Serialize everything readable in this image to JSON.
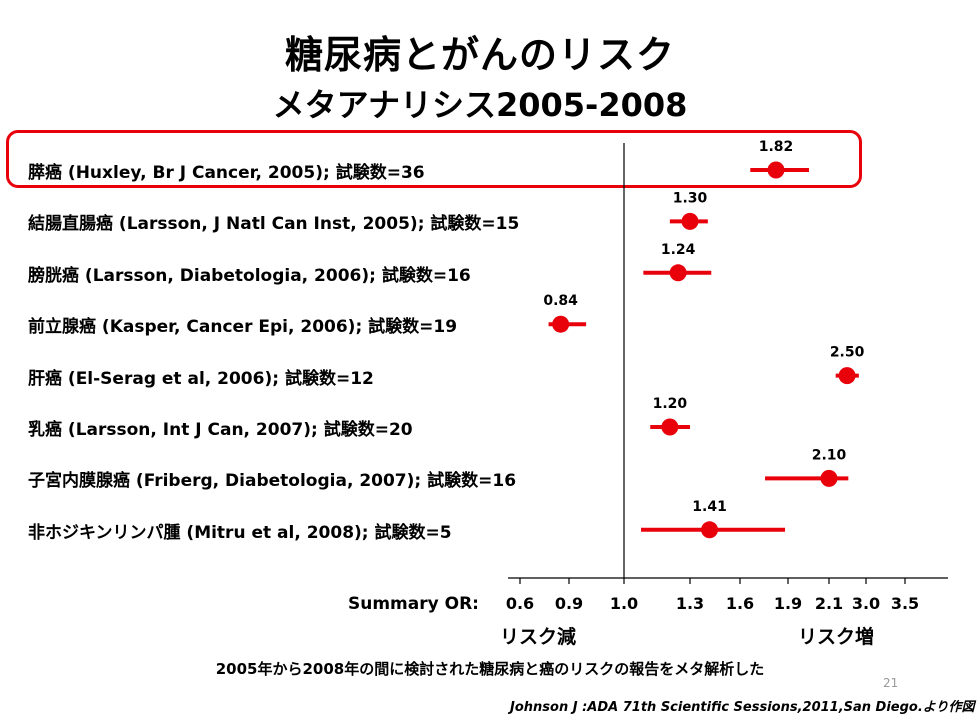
{
  "title_line1": "糖尿病とがんのリスク",
  "title_line2": "メタアナリシス2005-2008",
  "axis": {
    "prefix": "Summary OR:",
    "left_label": "リスク減",
    "right_label": "リスク増"
  },
  "caption": "2005年から2008年の間に検討された糖尿病と癌のリスクの報告をメタ解析した",
  "page_number": "21",
  "source": "Johnson J :ADA 71th Scientific Sessions,2011,San Diego.より作図",
  "colors": {
    "point": "#e8000b",
    "highlight": "#e8000b"
  },
  "rows": [
    {
      "name": "膵癌",
      "cite": "(Huxley, Br J Cancer, 2005); 試験数=36",
      "highlighted": true
    },
    {
      "name": "結腸直腸癌",
      "cite": "(Larsson, J Natl Can Inst, 2005); 試験数=15"
    },
    {
      "name": "膀胱癌",
      "cite": "(Larsson, Diabetologia, 2006); 試験数=16"
    },
    {
      "name": "前立腺癌",
      "cite": "(Kasper, Cancer Epi, 2006); 試験数=19"
    },
    {
      "name": "肝癌",
      "cite": "(El-Serag et al, 2006); 試験数=12"
    },
    {
      "name": "乳癌",
      "cite": "(Larsson, Int J Can, 2007); 試験数=20"
    },
    {
      "name": "子宮内膜腺癌",
      "cite": "(Friberg, Diabetologia, 2007); 試験数=16"
    },
    {
      "name": "非ホジキンリンパ腫",
      "cite": "(Mitru et al, 2008); 試験数=5"
    }
  ],
  "chart_data": {
    "type": "scatter",
    "subtype": "forest-plot",
    "x_scale": "log",
    "xlabel": "Summary OR:",
    "x_ticks": [
      0.6,
      0.9,
      1.0,
      1.3,
      1.6,
      1.9,
      2.1,
      3.0,
      3.5
    ],
    "x_tick_labels": [
      "0.6",
      "0.9",
      "1.0",
      "1.3",
      "1.6",
      "1.9",
      "2.1",
      "3.0",
      "3.5"
    ],
    "reference_line": 1.0,
    "points": [
      {
        "label": "膵癌",
        "or": 1.82,
        "or_text": "1.82",
        "ci": [
          1.66,
          2.0
        ]
      },
      {
        "label": "結腸直腸癌",
        "or": 1.3,
        "or_text": "1.30",
        "ci": [
          1.2,
          1.4
        ]
      },
      {
        "label": "膀胱癌",
        "or": 1.24,
        "or_text": "1.24",
        "ci": [
          1.08,
          1.42
        ]
      },
      {
        "label": "前立腺癌",
        "or": 0.84,
        "or_text": "0.84",
        "ci": [
          0.76,
          0.93
        ]
      },
      {
        "label": "肝癌",
        "or": 2.5,
        "or_text": "2.50",
        "ci": [
          2.24,
          2.8
        ]
      },
      {
        "label": "乳癌",
        "or": 1.2,
        "or_text": "1.20",
        "ci": [
          1.11,
          1.3
        ]
      },
      {
        "label": "子宮内膜腺癌",
        "or": 2.1,
        "or_text": "2.10",
        "ci": [
          1.75,
          2.53
        ]
      },
      {
        "label": "非ホジキンリンパ腫",
        "or": 1.41,
        "or_text": "1.41",
        "ci": [
          1.07,
          1.88
        ]
      }
    ]
  }
}
